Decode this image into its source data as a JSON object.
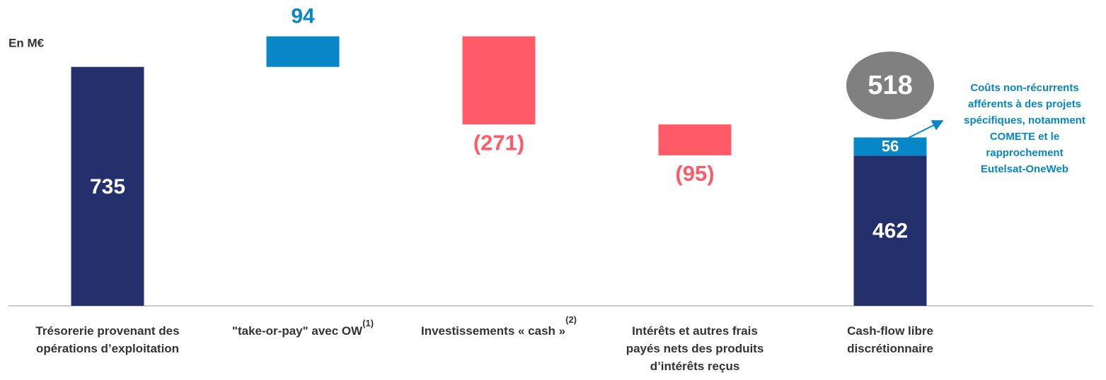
{
  "chart_data": {
    "type": "waterfall",
    "unit_label": "En M€",
    "categories": [
      [
        "Trésorerie provenant des",
        "opérations d’exploitation"
      ],
      [
        "\"take-or-pay\" avec OW"
      ],
      [
        "Investissements « cash »"
      ],
      [
        "Intérêts et autres frais",
        "payés nets des produits",
        "d’intérêts reçus"
      ],
      [
        "Cash-flow libre",
        "discrétionnaire"
      ]
    ],
    "category_notes": [
      null,
      "(1)",
      "(2)",
      null,
      null
    ],
    "kinds": [
      "total",
      "increase",
      "decrease",
      "decrease",
      "total"
    ],
    "values": [
      735,
      94,
      -271,
      -95,
      462
    ],
    "value_labels": [
      "735",
      "94",
      "(271)",
      "(95)",
      "462"
    ],
    "stack_top": {
      "value": 56,
      "color": "#0787c7"
    },
    "total": 518,
    "colors": {
      "total": "#24306c",
      "increase": "#0787c7",
      "decrease": "#ff5a68"
    },
    "annotation": [
      "Coûts non-récurrents",
      "afférents à des projets",
      "spécifiques, notamment",
      "COMETE et le",
      "rapprochement",
      "Eutelsat-OneWeb"
    ],
    "ylim": [
      0,
      830
    ]
  }
}
